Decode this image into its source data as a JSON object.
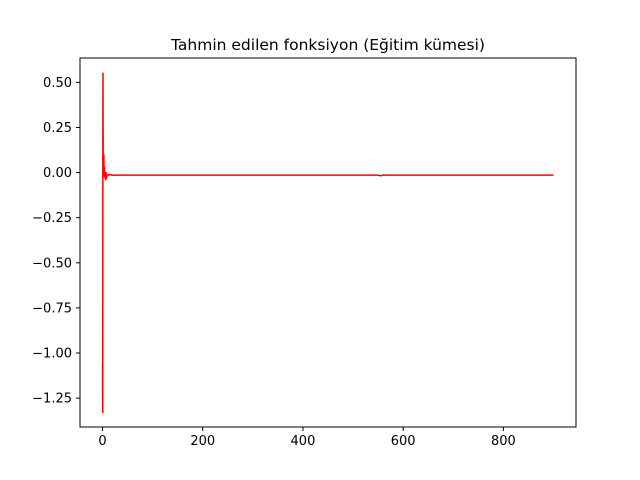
{
  "chart_data": {
    "type": "line",
    "title": "Tahmin edilen fonksiyon (Eğitim kümesi)",
    "xlabel": "",
    "ylabel": "",
    "xlim": [
      -45,
      945
    ],
    "ylim": [
      -1.41,
      0.635
    ],
    "grid": false,
    "legend": "none",
    "x_ticks": [
      {
        "value": 0,
        "label": "0"
      },
      {
        "value": 200,
        "label": "200"
      },
      {
        "value": 400,
        "label": "400"
      },
      {
        "value": 600,
        "label": "600"
      },
      {
        "value": 800,
        "label": "800"
      }
    ],
    "y_ticks": [
      {
        "value": 0.5,
        "label": "0.50"
      },
      {
        "value": 0.25,
        "label": "0.25"
      },
      {
        "value": 0.0,
        "label": "0.00"
      },
      {
        "value": -0.25,
        "label": "−0.25"
      },
      {
        "value": -0.5,
        "label": "−0.50"
      },
      {
        "value": -0.75,
        "label": "−0.75"
      },
      {
        "value": -1.0,
        "label": "−1.00"
      },
      {
        "value": -1.25,
        "label": "−1.25"
      }
    ],
    "series": [
      {
        "color": "#ff0000",
        "x": [
          0,
          0.3,
          0.6,
          0.9,
          1.2,
          1.6,
          2.0,
          2.5,
          3.0,
          3.6,
          4.3,
          5.0,
          6.0,
          7.0,
          8.0,
          9.0,
          10.0,
          12.0,
          15.0,
          20.0,
          30.0,
          50.0,
          100.0,
          200.0,
          300.0,
          400.0,
          500.0,
          550.0,
          555.0,
          560.0,
          600.0,
          700.0,
          800.0,
          850.0,
          900.0
        ],
        "y": [
          -1.06,
          -1.33,
          0.15,
          0.55,
          0.1,
          0.05,
          0.02,
          0.1,
          -0.02,
          0.03,
          -0.01,
          -0.02,
          -0.04,
          0.0,
          -0.03,
          -0.015,
          -0.015,
          -0.012,
          -0.012,
          -0.015,
          -0.014,
          -0.014,
          -0.014,
          -0.014,
          -0.014,
          -0.014,
          -0.014,
          -0.014,
          -0.018,
          -0.014,
          -0.014,
          -0.014,
          -0.014,
          -0.014,
          -0.014
        ]
      }
    ]
  }
}
